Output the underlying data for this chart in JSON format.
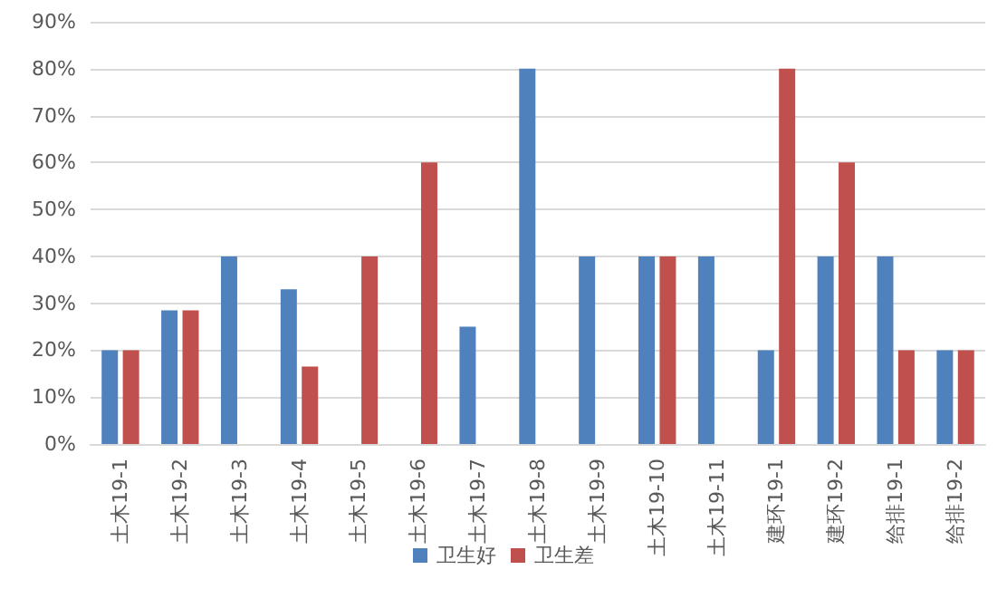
{
  "chart_data": {
    "type": "bar",
    "categories": [
      "土木19-1",
      "土木19-2",
      "土木19-3",
      "土木19-4",
      "土木19-5",
      "土木19-6",
      "土木19-7",
      "土木19-8",
      "土木19-9",
      "土木19-10",
      "土木19-11",
      "建环19-1",
      "建环19-2",
      "给排19-1",
      "给排19-2"
    ],
    "series": [
      {
        "name": "卫生好",
        "color": "#4f81bd",
        "values": [
          20,
          28.5,
          40,
          33,
          0,
          0,
          25,
          80,
          40,
          40,
          40,
          20,
          40,
          40,
          20
        ]
      },
      {
        "name": "卫生差",
        "color": "#c0504d",
        "values": [
          20,
          28.5,
          0,
          16.5,
          40,
          60,
          0,
          0,
          0,
          40,
          0,
          80,
          60,
          20,
          20
        ]
      }
    ],
    "ylim": [
      0,
      90
    ],
    "yticks": [
      {
        "value": 0,
        "label": "0%"
      },
      {
        "value": 10,
        "label": "10%"
      },
      {
        "value": 20,
        "label": "20%"
      },
      {
        "value": 30,
        "label": "30%"
      },
      {
        "value": 40,
        "label": "40%"
      },
      {
        "value": 50,
        "label": "50%"
      },
      {
        "value": 60,
        "label": "60%"
      },
      {
        "value": 70,
        "label": "70%"
      },
      {
        "value": 80,
        "label": "80%"
      },
      {
        "value": 90,
        "label": "90%"
      }
    ],
    "grid": "y",
    "legend": "bottom"
  }
}
